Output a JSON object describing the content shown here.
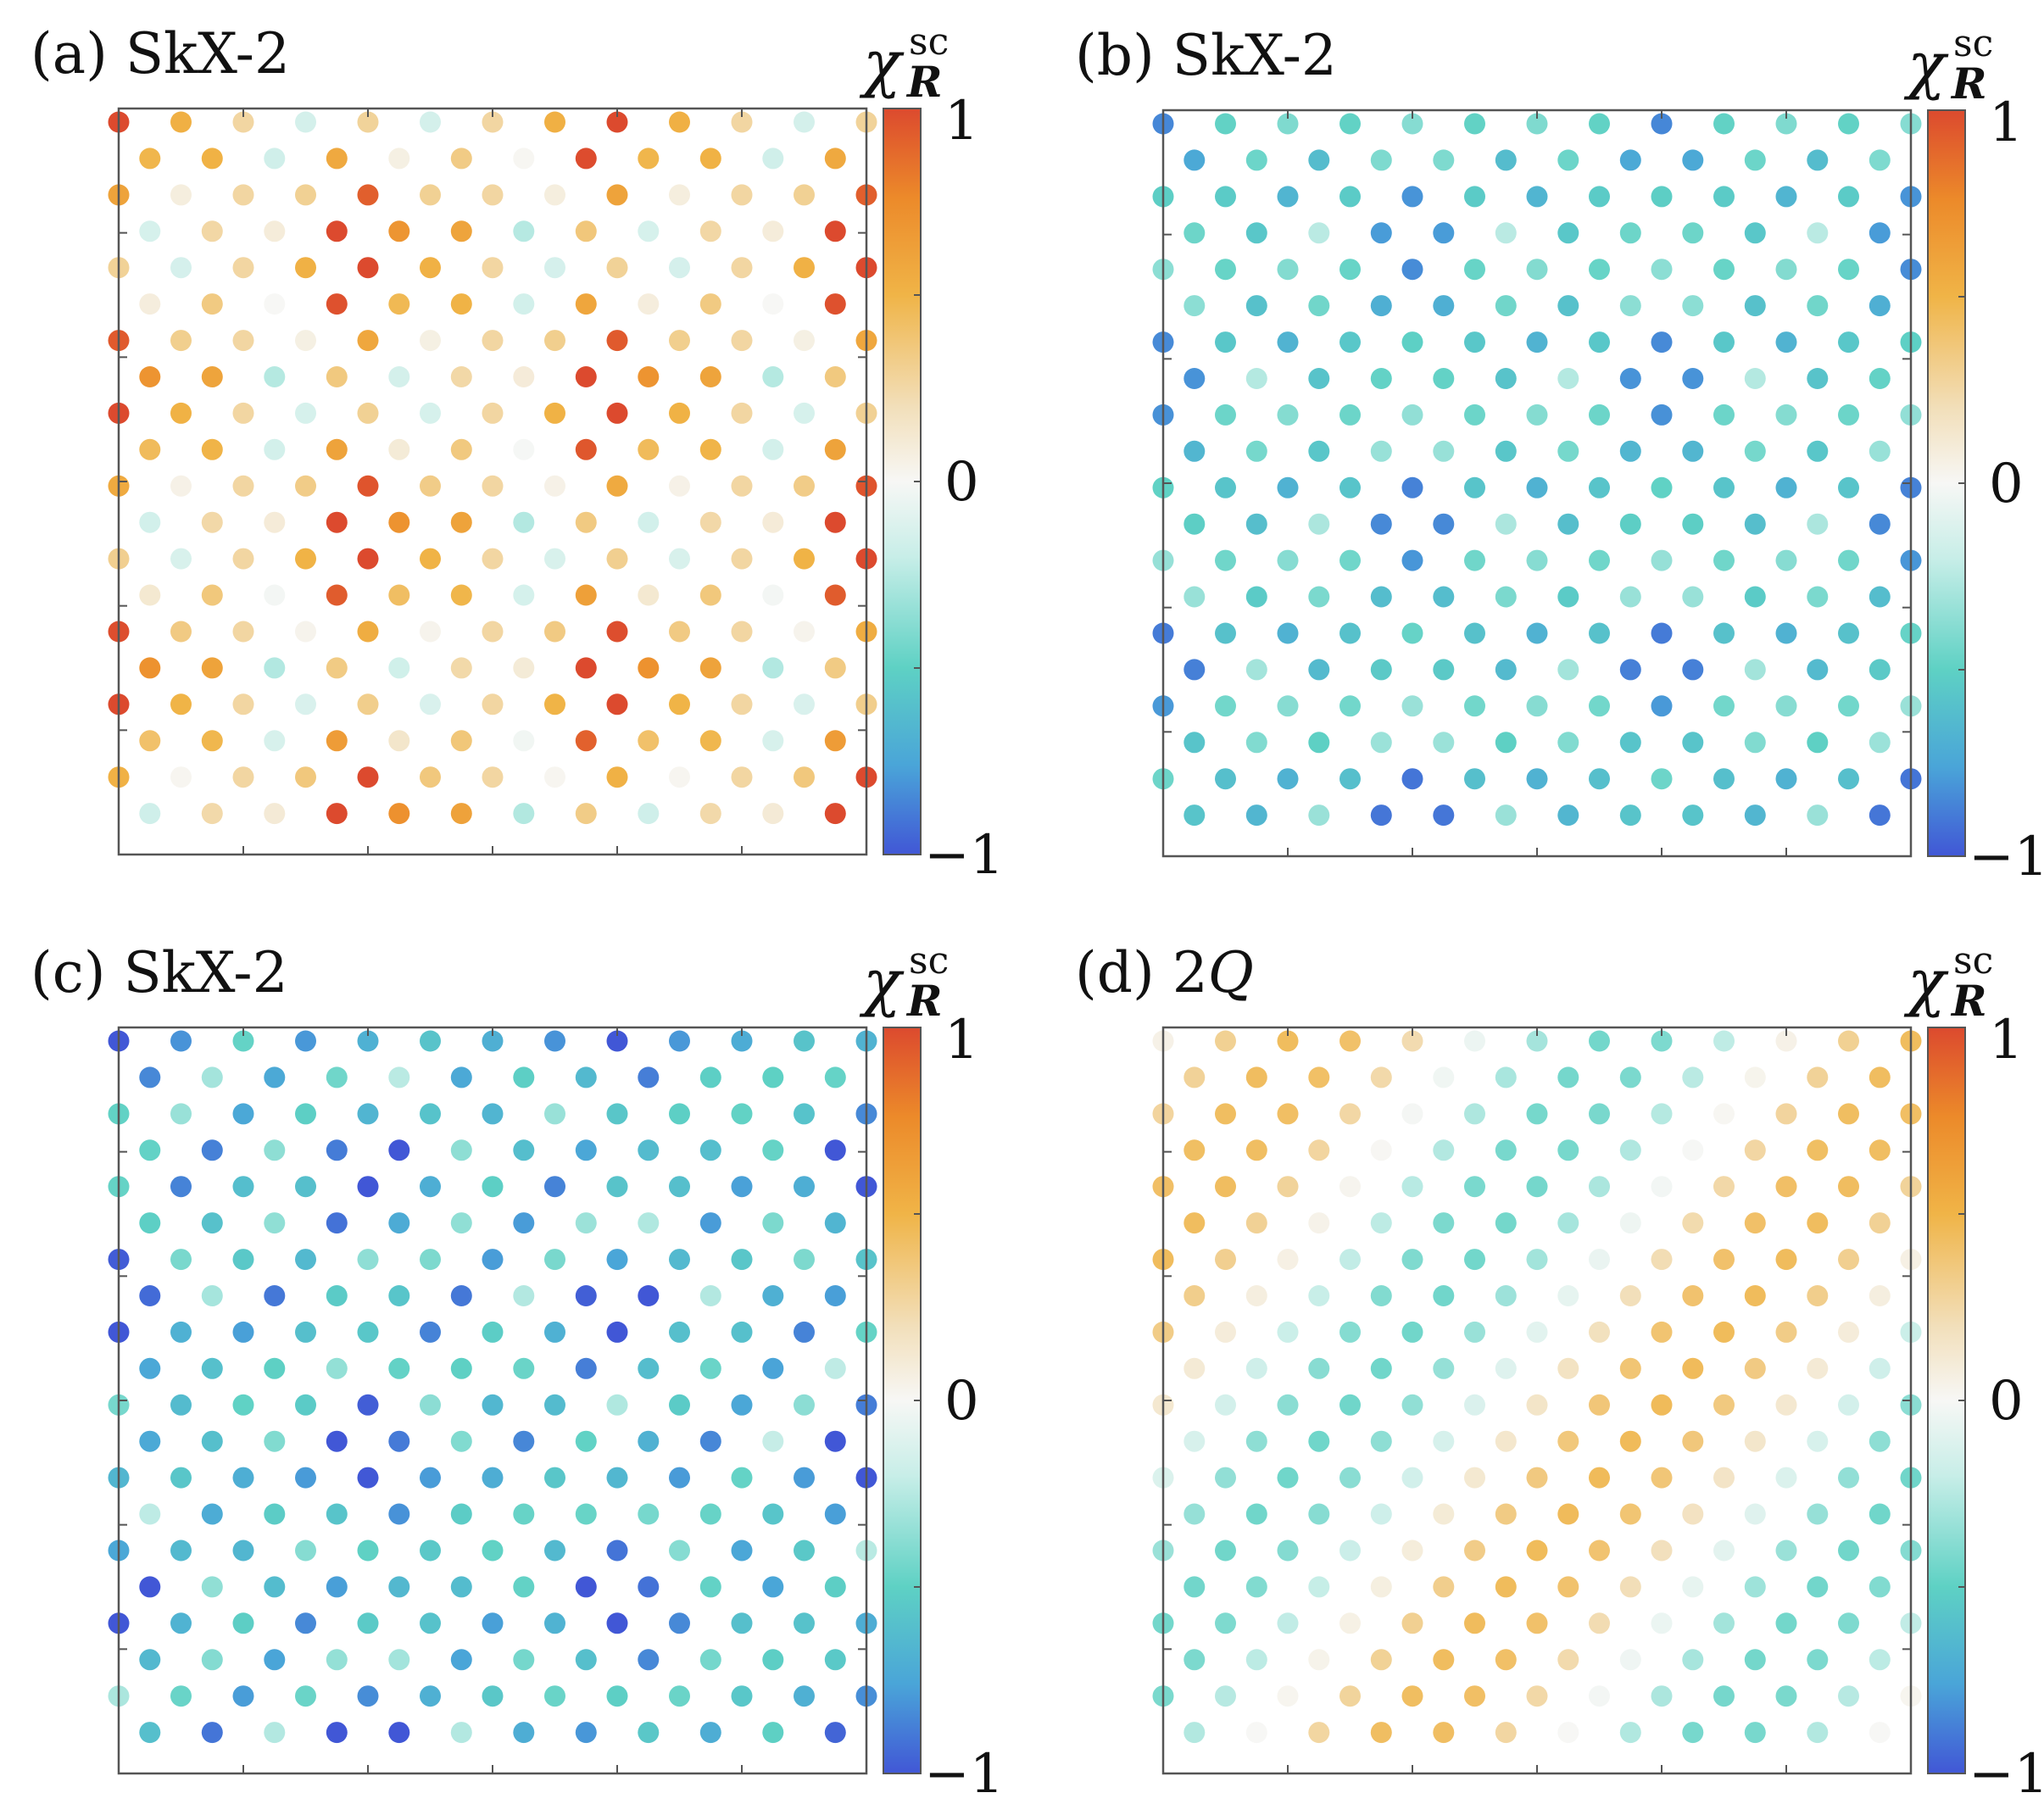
{
  "chart_data": [
    {
      "type": "scatter",
      "panel_label": "(a)",
      "title_parts": [
        "SkX-2"
      ],
      "colorbar": {
        "symbol": "χ",
        "superscript": "sc",
        "subscript": "R",
        "ticks": [
          "1",
          "0",
          "−1"
        ],
        "range": [
          -1,
          1
        ]
      },
      "lattice": "triangular",
      "pattern": {
        "kind": "skx_positive",
        "amplitude": 0.75,
        "offset": 0.35
      }
    },
    {
      "type": "scatter",
      "panel_label": "(b)",
      "title_parts": [
        "SkX-2"
      ],
      "colorbar": {
        "symbol": "χ",
        "superscript": "sc",
        "subscript": "R",
        "ticks": [
          "1",
          "0",
          "−1"
        ],
        "range": [
          -1,
          1
        ]
      },
      "lattice": "triangular",
      "pattern": {
        "kind": "skx_negative",
        "amplitude": 0.7,
        "offset": -0.3
      }
    },
    {
      "type": "scatter",
      "panel_label": "(c)",
      "title_parts": [
        "SkX-2"
      ],
      "colorbar": {
        "symbol": "χ",
        "superscript": "sc",
        "subscript": "R",
        "ticks": [
          "1",
          "0",
          "−1"
        ],
        "range": [
          -1,
          1
        ]
      },
      "lattice": "triangular",
      "pattern": {
        "kind": "skx_negative_strong",
        "amplitude": 0.85,
        "offset": -0.35
      }
    },
    {
      "type": "scatter",
      "panel_label": "(d)",
      "title_parts": [
        "2",
        "Q"
      ],
      "colorbar": {
        "symbol": "χ",
        "superscript": "sc",
        "subscript": "R",
        "ticks": [
          "1",
          "0",
          "−1"
        ],
        "range": [
          -1,
          1
        ]
      },
      "lattice": "triangular",
      "pattern": {
        "kind": "two_q_stripes",
        "amplitude": 0.5,
        "offset": 0.0
      }
    }
  ],
  "colors": {
    "colormap": [
      "#4157d6",
      "#4aa5d8",
      "#5ed1c4",
      "#c8eee8",
      "#f7f7f5",
      "#f2dfba",
      "#f0b447",
      "#ec8a2a",
      "#dc4a2e"
    ]
  }
}
